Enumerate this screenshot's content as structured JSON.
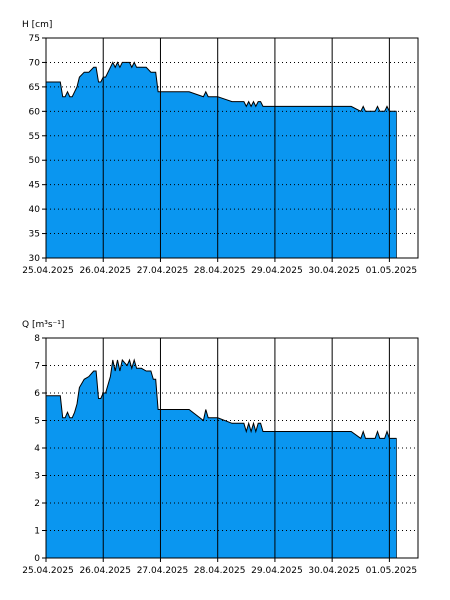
{
  "chart_data": [
    {
      "type": "area",
      "ylabel": "H [cm]",
      "ylim": [
        30,
        75
      ],
      "yticks": [
        30,
        35,
        40,
        45,
        50,
        55,
        60,
        65,
        70,
        75
      ],
      "xrange": [
        "2025-04-25T00:00",
        "2025-05-01T12:00"
      ],
      "xticks": [
        "25.04.2025",
        "26.04.2025",
        "27.04.2025",
        "28.04.2025",
        "29.04.2025",
        "30.04.2025",
        "01.05.2025"
      ],
      "grid": "dotted-horizontal, solid-vertical-day-lines",
      "fill_color": "#0a96f0",
      "line_color": "#000000",
      "series": [
        {
          "x": [
            "2025-04-25T00:00",
            "2025-04-25T06:00",
            "2025-04-25T07:00",
            "2025-04-25T08:00",
            "2025-04-25T09:00",
            "2025-04-25T10:00",
            "2025-04-25T11:00",
            "2025-04-25T12:00",
            "2025-04-25T13:00",
            "2025-04-25T14:00",
            "2025-04-25T16:00",
            "2025-04-25T18:00",
            "2025-04-25T20:00",
            "2025-04-25T21:00",
            "2025-04-25T22:00",
            "2025-04-25T23:00",
            "2025-04-26T00:00",
            "2025-04-26T01:00",
            "2025-04-26T03:00",
            "2025-04-26T04:00",
            "2025-04-26T05:00",
            "2025-04-26T06:00",
            "2025-04-26T07:00",
            "2025-04-26T08:00",
            "2025-04-26T09:00",
            "2025-04-26T11:00",
            "2025-04-26T12:00",
            "2025-04-26T13:00",
            "2025-04-26T14:00",
            "2025-04-26T15:00",
            "2025-04-26T16:00",
            "2025-04-26T18:00",
            "2025-04-26T20:00",
            "2025-04-26T21:00",
            "2025-04-26T22:00",
            "2025-04-26T23:00",
            "2025-04-27T00:00",
            "2025-04-27T01:00",
            "2025-04-27T06:00",
            "2025-04-27T12:00",
            "2025-04-27T18:00",
            "2025-04-27T19:00",
            "2025-04-27T20:00",
            "2025-04-28T00:00",
            "2025-04-28T06:00",
            "2025-04-28T10:00",
            "2025-04-28T11:00",
            "2025-04-28T12:00",
            "2025-04-28T13:00",
            "2025-04-28T14:00",
            "2025-04-28T15:00",
            "2025-04-28T16:00",
            "2025-04-28T17:00",
            "2025-04-28T18:00",
            "2025-04-28T19:00",
            "2025-04-29T00:00",
            "2025-04-29T12:00",
            "2025-04-30T00:00",
            "2025-04-30T06:00",
            "2025-04-30T08:00",
            "2025-04-30T12:00",
            "2025-04-30T13:00",
            "2025-04-30T14:00",
            "2025-04-30T18:00",
            "2025-04-30T19:00",
            "2025-04-30T20:00",
            "2025-04-30T22:00",
            "2025-04-30T23:00",
            "2025-05-01T00:00",
            "2025-05-01T03:00"
          ],
          "values": [
            66,
            66,
            63,
            63,
            64,
            63,
            63,
            64,
            65,
            67,
            68,
            68,
            69,
            69,
            66,
            66,
            67,
            67,
            69,
            70,
            69,
            70,
            69,
            70,
            70,
            70,
            69,
            70,
            69,
            69,
            69,
            69,
            68,
            68,
            68,
            64,
            64,
            64,
            64,
            64,
            63,
            64,
            63,
            63,
            62,
            62,
            62,
            61,
            62,
            61,
            62,
            61,
            62,
            62,
            61,
            61,
            61,
            61,
            61,
            61,
            60,
            61,
            60,
            60,
            61,
            60,
            60,
            61,
            60,
            60
          ]
        }
      ]
    },
    {
      "type": "area",
      "ylabel": "Q [m³s⁻¹]",
      "ylim": [
        0,
        8
      ],
      "yticks": [
        0,
        1,
        2,
        3,
        4,
        5,
        6,
        7,
        8
      ],
      "xrange": [
        "2025-04-25T00:00",
        "2025-05-01T12:00"
      ],
      "xticks": [
        "25.04.2025",
        "26.04.2025",
        "27.04.2025",
        "28.04.2025",
        "29.04.2025",
        "30.04.2025",
        "01.05.2025"
      ],
      "grid": "dotted-horizontal, solid-vertical-day-lines",
      "fill_color": "#0a96f0",
      "line_color": "#000000",
      "series": [
        {
          "x": [
            "2025-04-25T00:00",
            "2025-04-25T06:00",
            "2025-04-25T07:00",
            "2025-04-25T08:00",
            "2025-04-25T09:00",
            "2025-04-25T10:00",
            "2025-04-25T11:00",
            "2025-04-25T12:00",
            "2025-04-25T13:00",
            "2025-04-25T14:00",
            "2025-04-25T16:00",
            "2025-04-25T18:00",
            "2025-04-25T20:00",
            "2025-04-25T21:00",
            "2025-04-25T22:00",
            "2025-04-25T23:00",
            "2025-04-26T00:00",
            "2025-04-26T01:00",
            "2025-04-26T03:00",
            "2025-04-26T04:00",
            "2025-04-26T05:00",
            "2025-04-26T06:00",
            "2025-04-26T07:00",
            "2025-04-26T08:00",
            "2025-04-26T09:00",
            "2025-04-26T10:00",
            "2025-04-26T11:00",
            "2025-04-26T12:00",
            "2025-04-26T13:00",
            "2025-04-26T14:00",
            "2025-04-26T15:00",
            "2025-04-26T16:00",
            "2025-04-26T18:00",
            "2025-04-26T20:00",
            "2025-04-26T21:00",
            "2025-04-26T22:00",
            "2025-04-26T23:00",
            "2025-04-27T00:00",
            "2025-04-27T01:00",
            "2025-04-27T06:00",
            "2025-04-27T12:00",
            "2025-04-27T18:00",
            "2025-04-27T19:00",
            "2025-04-27T20:00",
            "2025-04-28T00:00",
            "2025-04-28T06:00",
            "2025-04-28T10:00",
            "2025-04-28T11:00",
            "2025-04-28T12:00",
            "2025-04-28T13:00",
            "2025-04-28T14:00",
            "2025-04-28T15:00",
            "2025-04-28T16:00",
            "2025-04-28T17:00",
            "2025-04-28T18:00",
            "2025-04-28T19:00",
            "2025-04-29T00:00",
            "2025-04-29T12:00",
            "2025-04-30T00:00",
            "2025-04-30T06:00",
            "2025-04-30T08:00",
            "2025-04-30T12:00",
            "2025-04-30T13:00",
            "2025-04-30T14:00",
            "2025-04-30T18:00",
            "2025-04-30T19:00",
            "2025-04-30T20:00",
            "2025-04-30T22:00",
            "2025-04-30T23:00",
            "2025-05-01T00:00",
            "2025-05-01T03:00"
          ],
          "values": [
            5.9,
            5.9,
            5.1,
            5.1,
            5.3,
            5.1,
            5.1,
            5.3,
            5.6,
            6.2,
            6.5,
            6.6,
            6.8,
            6.8,
            5.8,
            5.8,
            6.0,
            6.0,
            6.6,
            7.2,
            6.8,
            7.2,
            6.8,
            7.2,
            7.1,
            7.0,
            7.2,
            6.9,
            7.2,
            6.9,
            6.9,
            6.9,
            6.8,
            6.8,
            6.5,
            6.5,
            5.4,
            5.4,
            5.4,
            5.4,
            5.4,
            5.0,
            5.4,
            5.1,
            5.1,
            4.9,
            4.9,
            4.9,
            4.6,
            4.9,
            4.6,
            4.9,
            4.6,
            4.9,
            4.9,
            4.6,
            4.6,
            4.6,
            4.6,
            4.6,
            4.6,
            4.35,
            4.6,
            4.35,
            4.35,
            4.6,
            4.35,
            4.35,
            4.6,
            4.35,
            4.35
          ]
        }
      ]
    }
  ]
}
